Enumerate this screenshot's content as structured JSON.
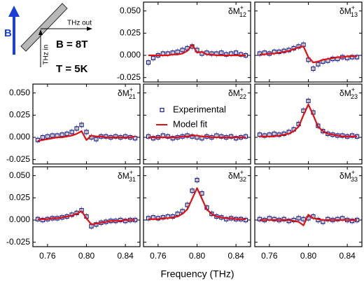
{
  "diagram": {
    "field": "B",
    "out": "THz out",
    "in": "THz in",
    "line1": "B = 8T",
    "line2": "T = 5K"
  },
  "xlabel": "Frequency (THz)",
  "chart_data": [
    {
      "type": "line",
      "label": {
        "base": "δM",
        "sup": "+",
        "sub": "12"
      },
      "xlim": [
        0.745,
        0.855
      ],
      "ylim": [
        -0.03,
        0.06
      ],
      "xticks": [
        0.76,
        {
          "value": 0.8,
          "label": "0.80"
        },
        0.84
      ],
      "yticks": [
        -0.025,
        {
          "value": 0,
          "label": "0.000"
        },
        0.025,
        {
          "value": 0.05,
          "label": "0.050"
        }
      ],
      "show_xtick_labels": false,
      "show_ytick_labels": true,
      "x": [
        0.75,
        0.755,
        0.76,
        0.765,
        0.77,
        0.775,
        0.78,
        0.785,
        0.79,
        0.795,
        0.8,
        0.805,
        0.81,
        0.815,
        0.82,
        0.825,
        0.83,
        0.835,
        0.84,
        0.845,
        0.85
      ],
      "series": [
        {
          "style": "markers",
          "color": "#1c1c8c",
          "error": 0.004,
          "values": [
            -0.008,
            -0.003,
            0.0,
            0.002,
            0.002,
            0.003,
            0.004,
            0.006,
            0.008,
            0.01,
            0.006,
            0.002,
            0.003,
            0.002,
            0.002,
            0.003,
            0.001,
            0.002,
            0.003,
            0.001,
            0.0
          ]
        },
        {
          "style": "line",
          "color": "#e01010",
          "values": [
            0,
            0,
            0,
            0,
            0,
            0.001,
            0.001,
            0.002,
            0.005,
            0.012,
            0.003,
            0.004,
            0.001,
            0.001,
            0,
            0,
            0,
            0,
            0,
            0,
            0
          ]
        }
      ]
    },
    {
      "type": "line",
      "label": {
        "base": "δM",
        "sup": "+",
        "sub": "13"
      },
      "xlim": [
        0.745,
        0.855
      ],
      "ylim": [
        -0.03,
        0.06
      ],
      "xticks": [
        0.76,
        {
          "value": 0.8,
          "label": "0.80"
        },
        0.84
      ],
      "yticks": [
        -0.025,
        {
          "value": 0,
          "label": "0.000"
        },
        0.025,
        {
          "value": 0.05,
          "label": "0.050"
        }
      ],
      "show_xtick_labels": false,
      "show_ytick_labels": false,
      "x": [
        0.75,
        0.755,
        0.76,
        0.765,
        0.77,
        0.775,
        0.78,
        0.785,
        0.79,
        0.795,
        0.8,
        0.805,
        0.81,
        0.815,
        0.82,
        0.825,
        0.83,
        0.835,
        0.84,
        0.845,
        0.85
      ],
      "series": [
        {
          "style": "markers",
          "color": "#1c1c8c",
          "error": 0.004,
          "values": [
            0.002,
            0.003,
            0.002,
            0.004,
            0.004,
            0.005,
            0.006,
            0.008,
            0.01,
            0.012,
            -0.005,
            -0.015,
            -0.01,
            -0.007,
            -0.006,
            -0.004,
            -0.004,
            -0.002,
            -0.003,
            -0.002,
            -0.002
          ]
        },
        {
          "style": "line",
          "color": "#e01010",
          "values": [
            0.001,
            0.001,
            0.002,
            0.002,
            0.003,
            0.004,
            0.005,
            0.007,
            0.009,
            0.01,
            -0.002,
            -0.008,
            -0.007,
            -0.005,
            -0.004,
            -0.003,
            -0.002,
            -0.002,
            -0.001,
            -0.001,
            -0.001
          ]
        }
      ]
    },
    {
      "type": "line",
      "label": {
        "base": "δM",
        "sup": "+",
        "sub": "21"
      },
      "xlim": [
        0.745,
        0.855
      ],
      "ylim": [
        -0.03,
        0.06
      ],
      "xticks": [
        0.76,
        {
          "value": 0.8,
          "label": "0.80"
        },
        0.84
      ],
      "yticks": [
        -0.025,
        {
          "value": 0,
          "label": "0.000"
        },
        0.025,
        {
          "value": 0.05,
          "label": "0.050"
        }
      ],
      "show_xtick_labels": false,
      "show_ytick_labels": true,
      "x": [
        0.75,
        0.755,
        0.76,
        0.765,
        0.77,
        0.775,
        0.78,
        0.785,
        0.79,
        0.795,
        0.8,
        0.805,
        0.81,
        0.815,
        0.82,
        0.825,
        0.83,
        0.835,
        0.84,
        0.845,
        0.85
      ],
      "series": [
        {
          "style": "markers",
          "color": "#1c1c8c",
          "error": 0.004,
          "values": [
            -0.003,
            0.0,
            0.001,
            0.002,
            0.002,
            0.003,
            0.004,
            0.006,
            0.01,
            0.014,
            0.006,
            0.0,
            -0.002,
            0.001,
            0.001,
            0.0,
            0.001,
            0.0,
            0.001,
            0.0,
            -0.001
          ]
        },
        {
          "style": "line",
          "color": "#e01010",
          "values": [
            -0.004,
            -0.003,
            -0.002,
            -0.001,
            0,
            0,
            0.001,
            0.002,
            0.004,
            0.007,
            -0.003,
            0.002,
            0.001,
            0.001,
            0,
            0,
            0,
            0,
            0,
            0,
            0.001
          ]
        }
      ]
    },
    {
      "type": "line",
      "label": {
        "base": "δM",
        "sup": "+",
        "sub": "22"
      },
      "xlim": [
        0.745,
        0.855
      ],
      "ylim": [
        -0.03,
        0.06
      ],
      "xticks": [
        0.76,
        {
          "value": 0.8,
          "label": "0.80"
        },
        0.84
      ],
      "yticks": [
        -0.025,
        {
          "value": 0,
          "label": "0.000"
        },
        0.025,
        {
          "value": 0.05,
          "label": "0.050"
        }
      ],
      "show_xtick_labels": false,
      "show_ytick_labels": false,
      "legend": "upper center",
      "x": [
        0.75,
        0.755,
        0.76,
        0.765,
        0.77,
        0.775,
        0.78,
        0.785,
        0.79,
        0.795,
        0.8,
        0.805,
        0.81,
        0.815,
        0.82,
        0.825,
        0.83,
        0.835,
        0.84,
        0.845,
        0.85
      ],
      "series": [
        {
          "name": "Experimental",
          "style": "markers",
          "color": "#1c1c8c",
          "error": 0.004,
          "values": [
            0.001,
            -0.001,
            0.0,
            0.002,
            0.001,
            -0.001,
            0.0,
            0.001,
            0.002,
            0.001,
            0.0,
            -0.001,
            0.001,
            0.0,
            0.002,
            0.001,
            0.0,
            0.001,
            -0.001,
            0.0,
            0.001
          ]
        },
        {
          "name": "Model fit",
          "style": "line",
          "color": "#e01010",
          "values": [
            0,
            0,
            0,
            0,
            0,
            0,
            0,
            0.001,
            0.001,
            0.002,
            0.002,
            0.001,
            0.001,
            0,
            0,
            0,
            0,
            0,
            0,
            0,
            0
          ]
        }
      ]
    },
    {
      "type": "line",
      "label": {
        "base": "δM",
        "sup": "+",
        "sub": "23"
      },
      "xlim": [
        0.745,
        0.855
      ],
      "ylim": [
        -0.03,
        0.06
      ],
      "xticks": [
        0.76,
        {
          "value": 0.8,
          "label": "0.80"
        },
        0.84
      ],
      "yticks": [
        -0.025,
        {
          "value": 0,
          "label": "0.000"
        },
        0.025,
        {
          "value": 0.05,
          "label": "0.050"
        }
      ],
      "show_xtick_labels": false,
      "show_ytick_labels": false,
      "x": [
        0.75,
        0.755,
        0.76,
        0.765,
        0.77,
        0.775,
        0.78,
        0.785,
        0.79,
        0.795,
        0.8,
        0.805,
        0.81,
        0.815,
        0.82,
        0.825,
        0.83,
        0.835,
        0.84,
        0.845,
        0.85
      ],
      "series": [
        {
          "style": "markers",
          "color": "#1c1c8c",
          "error": 0.004,
          "values": [
            0.003,
            0.002,
            0.003,
            0.004,
            0.003,
            0.004,
            0.006,
            0.009,
            0.015,
            0.03,
            0.041,
            0.028,
            0.013,
            0.007,
            0.004,
            0.003,
            0.002,
            0.002,
            0.001,
            0.002,
            0.001
          ]
        },
        {
          "style": "line",
          "color": "#e01010",
          "values": [
            0.001,
            0.001,
            0.001,
            0.001,
            0.002,
            0.003,
            0.004,
            0.007,
            0.012,
            0.025,
            0.037,
            0.025,
            0.012,
            0.007,
            0.004,
            0.003,
            0.002,
            0.001,
            0.001,
            0.001,
            0.001
          ]
        }
      ]
    },
    {
      "type": "line",
      "label": {
        "base": "δM",
        "sup": "+",
        "sub": "31"
      },
      "xlim": [
        0.745,
        0.855
      ],
      "ylim": [
        -0.03,
        0.06
      ],
      "xticks": [
        0.76,
        {
          "value": 0.8,
          "label": "0.80"
        },
        0.84
      ],
      "yticks": [
        -0.025,
        {
          "value": 0,
          "label": "0.000"
        },
        0.025,
        {
          "value": 0.05,
          "label": "0.050"
        }
      ],
      "show_xtick_labels": true,
      "show_ytick_labels": true,
      "x": [
        0.75,
        0.755,
        0.76,
        0.765,
        0.77,
        0.775,
        0.78,
        0.785,
        0.79,
        0.795,
        0.8,
        0.805,
        0.81,
        0.815,
        0.82,
        0.825,
        0.83,
        0.835,
        0.84,
        0.845,
        0.85
      ],
      "series": [
        {
          "style": "markers",
          "color": "#1c1c8c",
          "error": 0.004,
          "values": [
            0.001,
            0.0,
            0.001,
            0.002,
            0.002,
            0.003,
            0.004,
            0.006,
            0.008,
            0.011,
            0.004,
            -0.007,
            -0.005,
            -0.003,
            -0.002,
            -0.001,
            -0.001,
            0.0,
            -0.001,
            0.0,
            0.0
          ]
        },
        {
          "style": "line",
          "color": "#e01010",
          "values": [
            0.001,
            0.001,
            0.001,
            0.002,
            0.002,
            0.003,
            0.004,
            0.005,
            0.007,
            0.01,
            0.002,
            -0.005,
            -0.004,
            -0.003,
            -0.002,
            -0.001,
            -0.001,
            -0.001,
            0,
            0,
            0
          ]
        }
      ]
    },
    {
      "type": "line",
      "label": {
        "base": "δM",
        "sup": "+",
        "sub": "32"
      },
      "xlim": [
        0.745,
        0.855
      ],
      "ylim": [
        -0.03,
        0.06
      ],
      "xticks": [
        0.76,
        {
          "value": 0.8,
          "label": "0.80"
        },
        0.84
      ],
      "yticks": [
        -0.025,
        {
          "value": 0,
          "label": "0.000"
        },
        0.025,
        {
          "value": 0.05,
          "label": "0.050"
        }
      ],
      "show_xtick_labels": true,
      "show_ytick_labels": false,
      "x": [
        0.75,
        0.755,
        0.76,
        0.765,
        0.77,
        0.775,
        0.78,
        0.785,
        0.79,
        0.795,
        0.8,
        0.805,
        0.81,
        0.815,
        0.82,
        0.825,
        0.83,
        0.835,
        0.84,
        0.845,
        0.85
      ],
      "series": [
        {
          "style": "markers",
          "color": "#1c1c8c",
          "error": 0.004,
          "values": [
            0.002,
            0.003,
            0.002,
            0.003,
            0.004,
            0.004,
            0.007,
            0.01,
            0.017,
            0.033,
            0.045,
            0.03,
            0.014,
            0.007,
            0.004,
            0.003,
            0.001,
            0.002,
            0.001,
            0.001,
            0.0
          ]
        },
        {
          "style": "line",
          "color": "#e01010",
          "values": [
            0.001,
            0.001,
            0.001,
            0.002,
            0.002,
            0.003,
            0.004,
            0.007,
            0.012,
            0.024,
            0.036,
            0.024,
            0.012,
            0.007,
            0.004,
            0.003,
            0.002,
            0.002,
            0.001,
            0.001,
            0.001
          ]
        }
      ]
    },
    {
      "type": "line",
      "label": {
        "base": "δM",
        "sup": "+",
        "sub": "33"
      },
      "xlim": [
        0.745,
        0.855
      ],
      "ylim": [
        -0.03,
        0.06
      ],
      "xticks": [
        0.76,
        {
          "value": 0.8,
          "label": "0.80"
        },
        0.84
      ],
      "yticks": [
        -0.025,
        {
          "value": 0,
          "label": "0.000"
        },
        0.025,
        {
          "value": 0.05,
          "label": "0.050"
        }
      ],
      "show_xtick_labels": true,
      "show_ytick_labels": false,
      "x": [
        0.75,
        0.755,
        0.76,
        0.765,
        0.77,
        0.775,
        0.78,
        0.785,
        0.79,
        0.795,
        0.8,
        0.805,
        0.81,
        0.815,
        0.82,
        0.825,
        0.83,
        0.835,
        0.84,
        0.845,
        0.85
      ],
      "series": [
        {
          "style": "markers",
          "color": "#1c1c8c",
          "error": 0.004,
          "values": [
            0.001,
            0.0,
            0.002,
            0.001,
            0.0,
            0.001,
            -0.001,
            0.0,
            0.002,
            0.001,
            0.002,
            0.004,
            0.0,
            -0.002,
            0.001,
            0.0,
            0.001,
            0.002,
            0.0,
            -0.001,
            0.0
          ]
        },
        {
          "style": "line",
          "color": "#e01010",
          "values": [
            0,
            0,
            0,
            0,
            0,
            0,
            0,
            -0.001,
            -0.002,
            -0.006,
            0.006,
            0.002,
            0.001,
            0,
            0,
            0,
            0,
            0,
            0,
            0,
            0
          ]
        }
      ]
    }
  ]
}
